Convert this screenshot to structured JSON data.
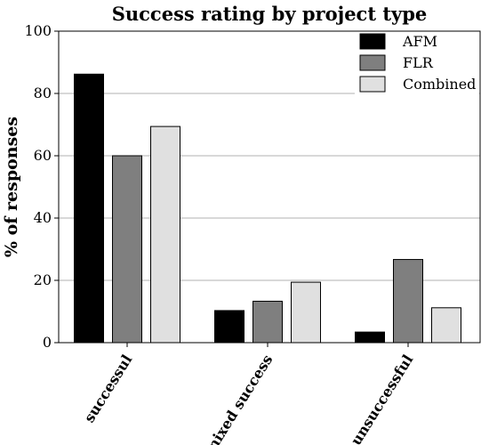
{
  "chart_data": {
    "type": "bar",
    "title": "Success rating by project type",
    "xlabel": "",
    "ylabel": "% of responses",
    "ylim": [
      0,
      100
    ],
    "yticks": [
      0,
      20,
      40,
      60,
      80,
      100
    ],
    "grid": true,
    "legend_position": "top-right",
    "categories": [
      "successul",
      "mixed success",
      "unsuccessful"
    ],
    "series": [
      {
        "name": "AFM",
        "color": "#000000",
        "values": [
          86.2,
          10.3,
          3.4
        ]
      },
      {
        "name": "FLR",
        "color": "#7f7f7f",
        "values": [
          60.0,
          13.3,
          26.7
        ]
      },
      {
        "name": "Combined",
        "color": "#e0e0e0",
        "values": [
          69.4,
          19.4,
          11.2
        ]
      }
    ]
  }
}
